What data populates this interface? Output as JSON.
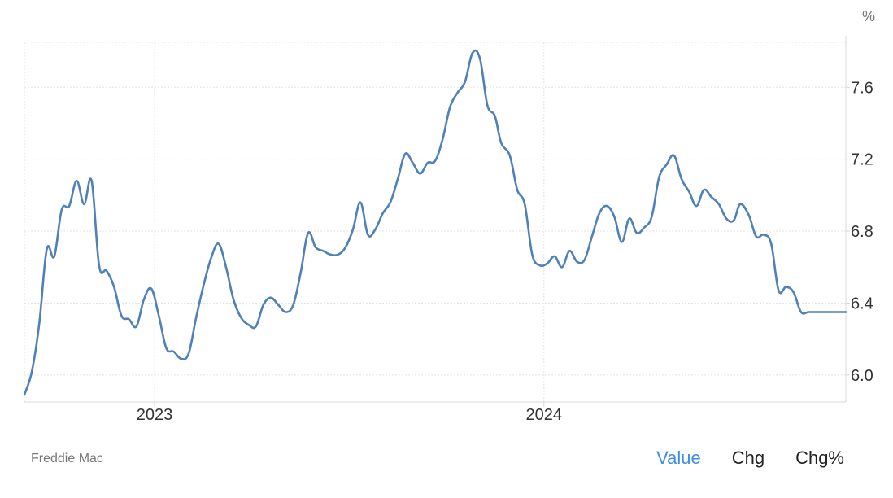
{
  "chart_data": {
    "type": "line",
    "unit": "%",
    "ylim": [
      5.85,
      7.85
    ],
    "y_ticks": [
      6.0,
      6.4,
      6.8,
      7.2,
      7.6
    ],
    "y_tick_labels": [
      "6.0",
      "6.4",
      "6.8",
      "7.2",
      "7.6"
    ],
    "x_ticks": [
      "2023-01-01",
      "2024-01-01"
    ],
    "x_tick_labels": [
      "2023",
      "2024"
    ],
    "x_range": [
      "2022-09-01",
      "2024-10-10"
    ],
    "grid": true,
    "series": [
      {
        "color": "#4f80b8",
        "x": [
          "2022-09-01",
          "2022-09-08",
          "2022-09-15",
          "2022-09-22",
          "2022-09-29",
          "2022-10-06",
          "2022-10-13",
          "2022-10-20",
          "2022-10-27",
          "2022-11-03",
          "2022-11-10",
          "2022-11-17",
          "2022-11-24",
          "2022-12-01",
          "2022-12-08",
          "2022-12-15",
          "2022-12-22",
          "2022-12-29",
          "2023-01-05",
          "2023-01-12",
          "2023-01-19",
          "2023-01-26",
          "2023-02-02",
          "2023-02-09",
          "2023-02-16",
          "2023-02-23",
          "2023-03-02",
          "2023-03-09",
          "2023-03-16",
          "2023-03-23",
          "2023-03-30",
          "2023-04-06",
          "2023-04-13",
          "2023-04-20",
          "2023-04-27",
          "2023-05-04",
          "2023-05-11",
          "2023-05-18",
          "2023-05-25",
          "2023-06-01",
          "2023-06-08",
          "2023-06-15",
          "2023-06-22",
          "2023-06-29",
          "2023-07-06",
          "2023-07-13",
          "2023-07-20",
          "2023-07-27",
          "2023-08-03",
          "2023-08-10",
          "2023-08-17",
          "2023-08-24",
          "2023-08-31",
          "2023-09-07",
          "2023-09-14",
          "2023-09-21",
          "2023-09-28",
          "2023-10-05",
          "2023-10-12",
          "2023-10-19",
          "2023-10-26",
          "2023-11-02",
          "2023-11-09",
          "2023-11-16",
          "2023-11-22",
          "2023-11-30",
          "2023-12-07",
          "2023-12-14",
          "2023-12-21",
          "2023-12-28",
          "2024-01-04",
          "2024-01-11",
          "2024-01-18",
          "2024-01-25",
          "2024-02-01",
          "2024-02-08",
          "2024-02-15",
          "2024-02-22",
          "2024-02-29",
          "2024-03-07",
          "2024-03-14",
          "2024-03-21",
          "2024-03-28",
          "2024-04-04",
          "2024-04-11",
          "2024-04-18",
          "2024-04-25",
          "2024-05-02",
          "2024-05-09",
          "2024-05-16",
          "2024-05-23",
          "2024-05-30",
          "2024-06-06",
          "2024-06-13",
          "2024-06-20",
          "2024-06-27",
          "2024-07-03",
          "2024-07-11",
          "2024-07-18",
          "2024-07-25",
          "2024-08-01",
          "2024-08-08",
          "2024-08-15",
          "2024-08-22",
          "2024-08-29",
          "2024-09-05",
          "2024-09-12",
          "2024-09-19",
          "2024-09-26",
          "2024-10-03",
          "2024-10-10"
        ],
        "values": [
          5.89,
          6.02,
          6.29,
          6.7,
          6.66,
          6.92,
          6.94,
          7.08,
          6.95,
          7.08,
          6.61,
          6.58,
          6.49,
          6.33,
          6.31,
          6.27,
          6.42,
          6.48,
          6.33,
          6.15,
          6.13,
          6.09,
          6.12,
          6.32,
          6.5,
          6.65,
          6.73,
          6.6,
          6.42,
          6.32,
          6.28,
          6.27,
          6.39,
          6.43,
          6.39,
          6.35,
          6.39,
          6.57,
          6.79,
          6.71,
          6.69,
          6.67,
          6.67,
          6.71,
          6.81,
          6.96,
          6.78,
          6.81,
          6.9,
          6.96,
          7.09,
          7.23,
          7.18,
          7.12,
          7.18,
          7.19,
          7.31,
          7.49,
          7.57,
          7.63,
          7.79,
          7.76,
          7.5,
          7.44,
          7.29,
          7.22,
          7.03,
          6.95,
          6.67,
          6.61,
          6.62,
          6.66,
          6.6,
          6.69,
          6.63,
          6.64,
          6.77,
          6.9,
          6.94,
          6.88,
          6.74,
          6.87,
          6.79,
          6.82,
          6.88,
          7.1,
          7.17,
          7.22,
          7.09,
          7.02,
          6.94,
          7.03,
          6.99,
          6.95,
          6.87,
          6.86,
          6.95,
          6.89,
          6.77,
          6.78,
          6.73,
          6.47,
          6.49,
          6.46,
          6.35,
          6.35,
          6.35,
          6.35,
          6.35,
          6.35,
          6.35
        ]
      }
    ]
  },
  "footer": {
    "source": "Freddie Mac",
    "tabs": [
      {
        "label": "Value",
        "active": true
      },
      {
        "label": "Chg",
        "active": false
      },
      {
        "label": "Chg%",
        "active": false
      }
    ]
  },
  "colors": {
    "line": "#4f80b8",
    "active_tab": "#3b8fe0"
  }
}
